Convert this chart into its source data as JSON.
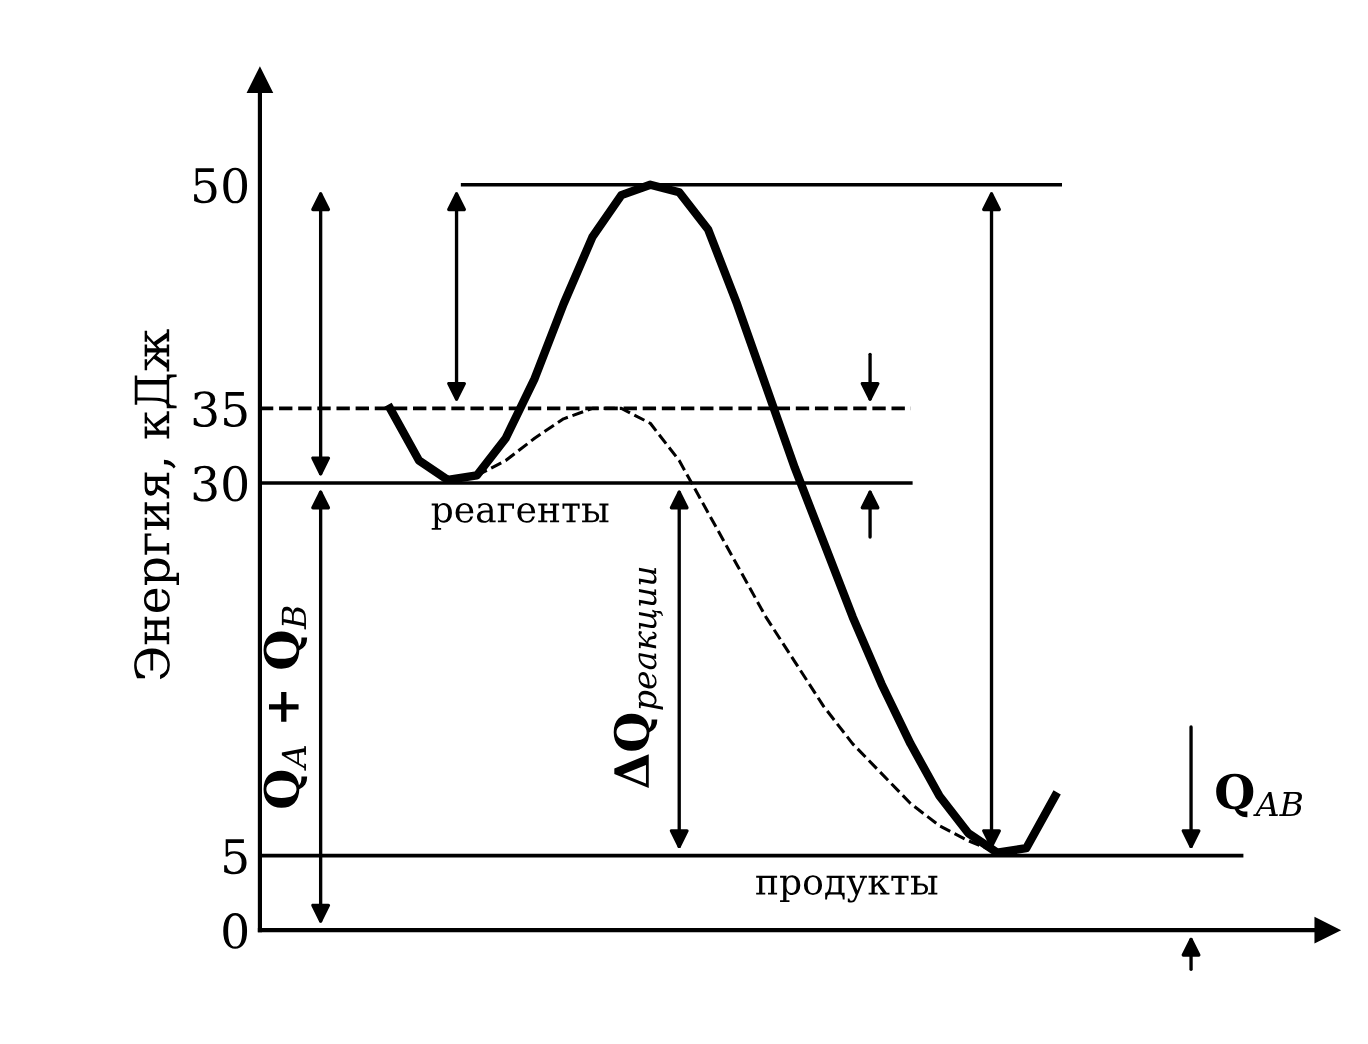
{
  "chart_data": {
    "type": "line",
    "ylabel": "Энергия, кДж",
    "categories": [
      null,
      null,
      null,
      null,
      null,
      null,
      null,
      null,
      null,
      null,
      null,
      null,
      null,
      null,
      null,
      null,
      null,
      null,
      null,
      null,
      null,
      null,
      null,
      null
    ],
    "series": [
      {
        "color": "#000000",
        "line_style": "solid",
        "values": [
          35,
          31.5,
          30.2,
          30.5,
          33,
          37,
          42,
          46.5,
          49.3,
          50,
          49.5,
          47,
          42,
          36.5,
          31,
          26,
          21,
          16.5,
          12.5,
          9,
          6.5,
          5.2,
          5.5,
          9
        ]
      },
      {
        "color": "#000000",
        "line_style": "dashed",
        "values": [
          null,
          null,
          null,
          30.5,
          31.5,
          33,
          34.3,
          35,
          35,
          34,
          31.5,
          28,
          24.5,
          21,
          18,
          15,
          12.5,
          10.5,
          8.5,
          7,
          6,
          5.2,
          null,
          null
        ]
      }
    ],
    "ylim": [
      0,
      57
    ],
    "yticks": [
      0,
      5,
      30,
      35,
      50
    ],
    "grid": false,
    "marker": "none",
    "ref_lines": [
      {
        "axis": "y",
        "value": 50,
        "label": null,
        "color": "#000000",
        "line_style": "solid"
      },
      {
        "axis": "y",
        "value": 35,
        "label": null,
        "color": "#000000",
        "line_style": "dashed"
      },
      {
        "axis": "y",
        "value": 30,
        "label": "реагенты",
        "color": "#000000",
        "line_style": "solid"
      },
      {
        "axis": "y",
        "value": 5,
        "label": "продукты",
        "color": "#000000",
        "line_style": "solid"
      }
    ],
    "annotations": [
      "Q$_{A}$ + Q$_{B}$",
      "ΔQ$_{реакции}$",
      "Q$_{AB}$"
    ]
  }
}
